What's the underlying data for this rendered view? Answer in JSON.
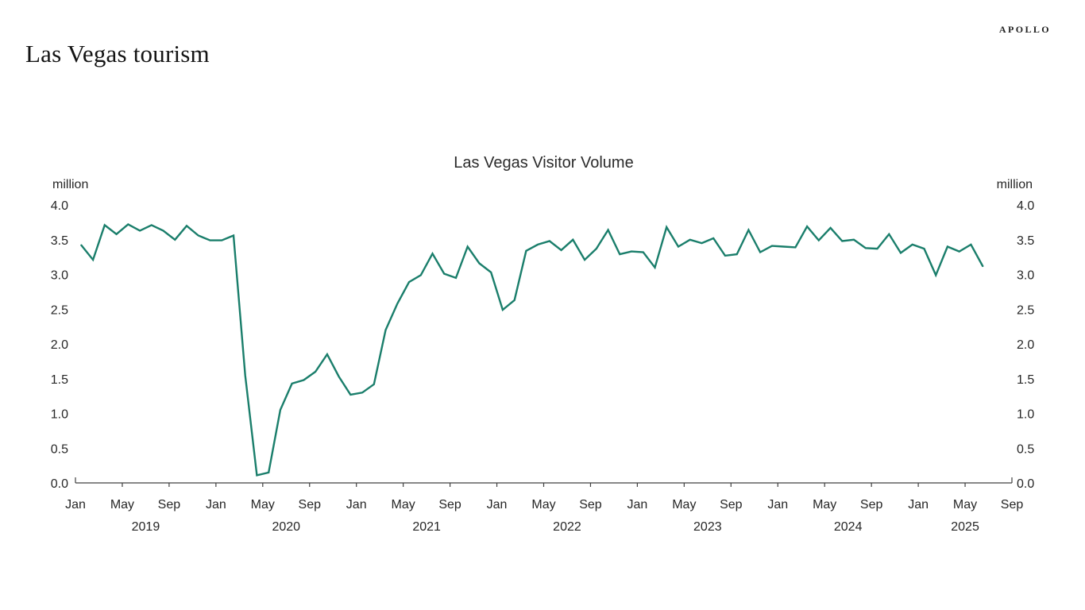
{
  "header": {
    "page_title": "Las Vegas tourism",
    "brand": "APOLLO"
  },
  "chart_data": {
    "type": "line",
    "title": "Las Vegas Visitor Volume",
    "unit_label_left": "million",
    "unit_label_right": "million",
    "line_color": "#1a7e6b",
    "axis_color": "#404040",
    "text_color": "#262626",
    "ylim": [
      0.0,
      4.0
    ],
    "ytick_labels": [
      "4.0",
      "3.5",
      "3.0",
      "2.5",
      "2.0",
      "1.5",
      "1.0",
      "0.5",
      "0.0"
    ],
    "xtick_month_labels": [
      "Jan",
      "May",
      "Sep"
    ],
    "year_labels": [
      "2019",
      "2020",
      "2021",
      "2022",
      "2023",
      "2024",
      "2025"
    ],
    "x_axis_start": "Jan 2019",
    "x_axis_end": "Sep 2025",
    "grid": "off",
    "legend": "none",
    "series": [
      {
        "name": "Las Vegas visitor volume (million)",
        "start_month": "Jan 2019",
        "end_month": "Jun 2025",
        "values_by_year": [
          {
            "year": 2019,
            "values": [
              3.42,
              3.21,
              3.71,
              3.58,
              3.72,
              3.63,
              3.71,
              3.63,
              3.5,
              3.7,
              3.56,
              3.49
            ]
          },
          {
            "year": 2020,
            "values": [
              3.49,
              3.56,
              1.55,
              0.11,
              0.15,
              1.05,
              1.43,
              1.48,
              1.6,
              1.85,
              1.53,
              1.27
            ]
          },
          {
            "year": 2021,
            "values": [
              1.3,
              1.42,
              2.2,
              2.58,
              2.89,
              2.99,
              3.3,
              3.01,
              2.95,
              3.4,
              3.16,
              3.03
            ]
          },
          {
            "year": 2022,
            "values": [
              2.49,
              2.63,
              3.34,
              3.43,
              3.48,
              3.35,
              3.5,
              3.21,
              3.37,
              3.64,
              3.29,
              3.33
            ]
          },
          {
            "year": 2023,
            "values": [
              3.32,
              3.1,
              3.68,
              3.4,
              3.5,
              3.45,
              3.52,
              3.27,
              3.29,
              3.64,
              3.32,
              3.41
            ]
          },
          {
            "year": 2024,
            "values": [
              3.4,
              3.39,
              3.69,
              3.49,
              3.67,
              3.48,
              3.5,
              3.38,
              3.37,
              3.58,
              3.31,
              3.43
            ]
          },
          {
            "year": 2025,
            "values": [
              3.37,
              2.99,
              3.4,
              3.33,
              3.43,
              3.12
            ]
          }
        ]
      }
    ]
  }
}
